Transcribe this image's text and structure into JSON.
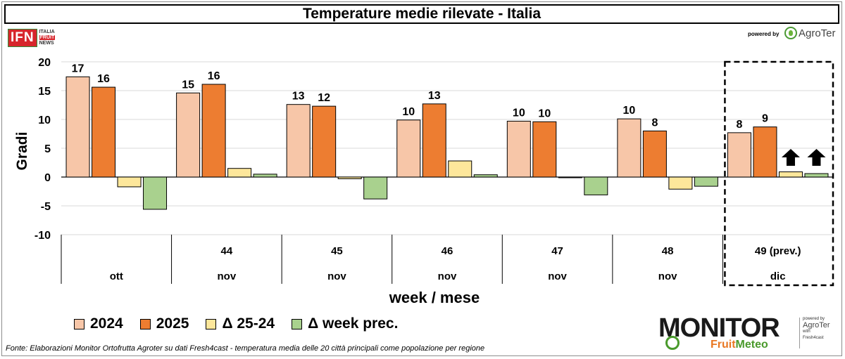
{
  "title": "Temperature medie rilevate - Italia",
  "logos": {
    "ifn_block": "IFN",
    "ifn_words": [
      "ITALIA",
      "FRUIT",
      "NEWS"
    ],
    "powered_by": "powered by",
    "agroter": "AgroTer",
    "monitor": "MONITOR",
    "monitor_fruit": "Fruit",
    "monitor_meteo": "Meteo",
    "monitor_side_powered": "powered by",
    "monitor_side_agroter": "AgroTer",
    "monitor_side_with": "with",
    "monitor_side_fresh": "Fresh4cast"
  },
  "colors": {
    "s2024": "#f7c6a8",
    "s2025": "#ed7d31",
    "delta": "#fde79b",
    "week": "#a9d18e",
    "grid": "#d9d9d9"
  },
  "chart_data": {
    "type": "bar",
    "title": "Temperature medie rilevate - Italia",
    "ylabel": "Gradi",
    "xlabel": "week / mese",
    "ylim": [
      -10,
      20
    ],
    "yticks": [
      20,
      15,
      10,
      5,
      0,
      -5,
      -10
    ],
    "categories": [
      {
        "week": "",
        "month": "ott"
      },
      {
        "week": "44",
        "month": "nov"
      },
      {
        "week": "45",
        "month": "nov"
      },
      {
        "week": "46",
        "month": "nov"
      },
      {
        "week": "47",
        "month": "nov"
      },
      {
        "week": "48",
        "month": "nov"
      },
      {
        "week": "49 (prev.)",
        "month": "dic"
      }
    ],
    "series": [
      {
        "name": "2024",
        "values": [
          17.4,
          14.6,
          12.6,
          9.9,
          9.7,
          10.1,
          7.7
        ],
        "labels": [
          "17",
          "15",
          "13",
          "10",
          "10",
          "10",
          "8"
        ]
      },
      {
        "name": "2025",
        "values": [
          15.6,
          16.1,
          12.3,
          12.7,
          9.6,
          8.0,
          8.7
        ],
        "labels": [
          "16",
          "16",
          "12",
          "13",
          "10",
          "8",
          "9"
        ]
      },
      {
        "name": "Δ 25-24",
        "values": [
          -1.7,
          1.5,
          -0.3,
          2.8,
          -0.1,
          -2.1,
          0.9
        ],
        "labels": []
      },
      {
        "name": "Δ week prec.",
        "values": [
          -5.6,
          0.5,
          -3.8,
          0.4,
          -3.1,
          -1.6,
          0.6
        ],
        "labels": []
      }
    ],
    "highlight_category_index": 6,
    "forecast_arrows": [
      "up",
      "up"
    ]
  },
  "source": "Fonte: Elaborazioni Monitor Ortofrutta Agroter su dati Fresh4cast - temperatura media delle 20 città principali come popolazione per regione"
}
